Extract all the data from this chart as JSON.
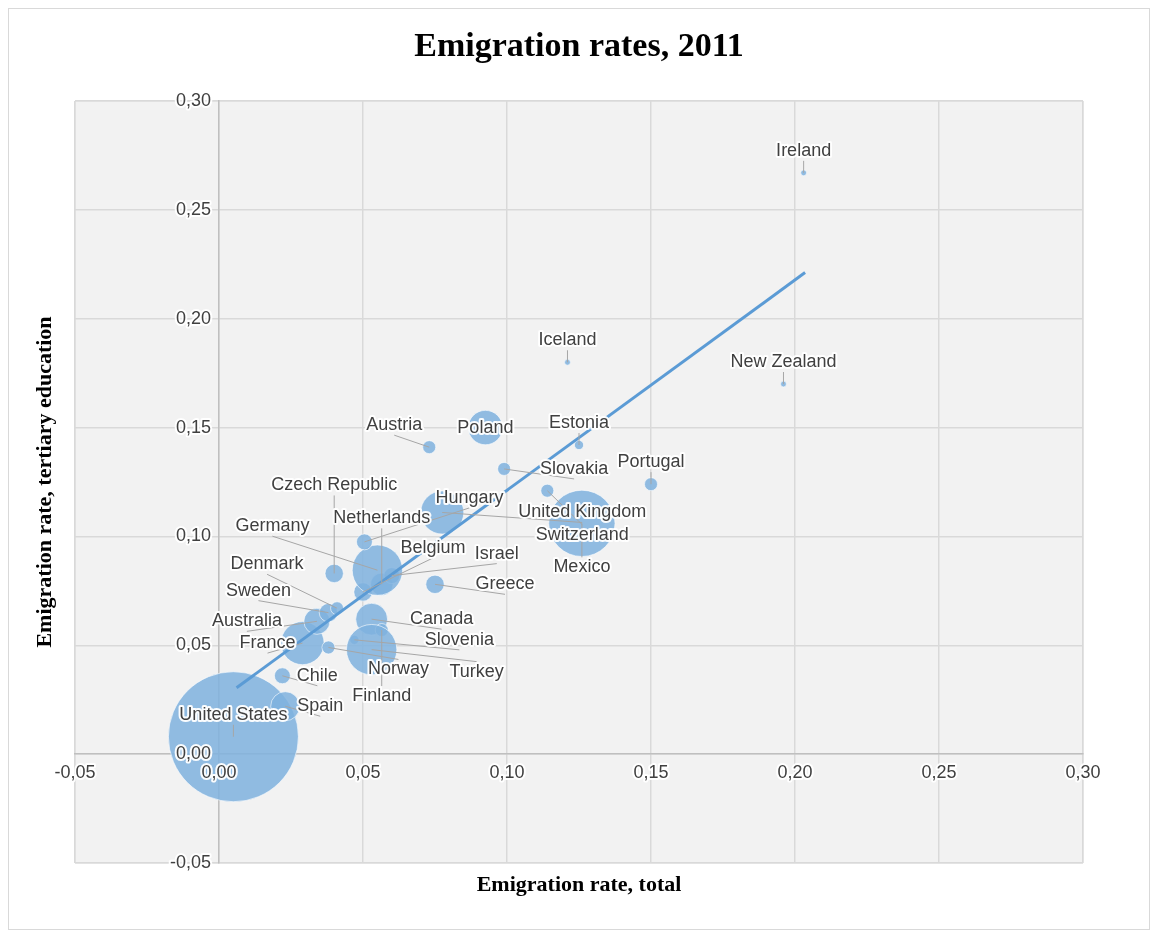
{
  "chart_data": {
    "type": "bubble",
    "title": "Emigration rates, 2011",
    "xlabel": "Emigration rate, total",
    "ylabel": "Emigration rate, tertiary education",
    "xlim": [
      -0.05,
      0.3
    ],
    "ylim": [
      -0.05,
      0.3
    ],
    "xticks": [
      {
        "value": -0.05,
        "label": "-0,05"
      },
      {
        "value": 0,
        "label": "0,00"
      },
      {
        "value": 0.05,
        "label": "0,05"
      },
      {
        "value": 0.1,
        "label": "0,10"
      },
      {
        "value": 0.15,
        "label": "0,15"
      },
      {
        "value": 0.2,
        "label": "0,20"
      },
      {
        "value": 0.25,
        "label": "0,25"
      },
      {
        "value": 0.3,
        "label": "0,30"
      }
    ],
    "yticks": [
      {
        "value": -0.05,
        "label": "-0,05"
      },
      {
        "value": 0,
        "label": "0,00"
      },
      {
        "value": 0.05,
        "label": "0,05"
      },
      {
        "value": 0.1,
        "label": "0,10"
      },
      {
        "value": 0.15,
        "label": "0,15"
      },
      {
        "value": 0.2,
        "label": "0,20"
      },
      {
        "value": 0.25,
        "label": "0,25"
      },
      {
        "value": 0.3,
        "label": "0,30"
      }
    ],
    "grid": true,
    "series": [
      {
        "color": "#7fb1de",
        "x": [
          0.005,
          0.023,
          0.022,
          0.029,
          0.038,
          0.034,
          0.038,
          0.041,
          0.053,
          0.0565,
          0.047,
          0.053,
          0.05,
          0.0565,
          0.075,
          0.06,
          0.055,
          0.04,
          0.0505,
          0.0775,
          0.0925,
          0.073,
          0.099,
          0.114,
          0.125,
          0.15,
          0.126,
          0.121,
          0.196,
          0.203
        ],
        "values": [
          0.008,
          0.022,
          0.036,
          0.051,
          0.049,
          0.061,
          0.065,
          0.067,
          0.062,
          0.057,
          0.0525,
          0.048,
          0.0745,
          0.078,
          0.078,
          0.082,
          0.0845,
          0.083,
          0.0975,
          0.111,
          0.15,
          0.141,
          0.131,
          0.121,
          0.142,
          0.124,
          0.106,
          0.18,
          0.17,
          0.267
        ],
        "sizes": [
          1,
          0.05,
          0.015,
          0.11,
          0.01,
          0.04,
          0.02,
          0.01,
          0.06,
          0.01,
          0.005,
          0.15,
          0.02,
          0.03,
          0.02,
          0.015,
          0.15,
          0.02,
          0.015,
          0.11,
          0.07,
          0.01,
          0.01,
          0.01,
          0.005,
          0.01,
          0.26,
          0.002,
          0.002,
          0.002
        ]
      },
      {
        "type": "line",
        "color": "#5b9bd5",
        "x": [
          0.0061,
          0.2035
        ],
        "values": [
          0.0305,
          0.2212
        ]
      }
    ],
    "annotations": [
      {
        "text": "United States",
        "x": 0.005,
        "y": 0.008
      },
      {
        "text": "Spain",
        "x": 0.023,
        "y": 0.022
      },
      {
        "text": "Chile",
        "x": 0.022,
        "y": 0.036
      },
      {
        "text": "France",
        "x": 0.029,
        "y": 0.051
      },
      {
        "text": "Norway",
        "x": 0.038,
        "y": 0.049
      },
      {
        "text": "Australia",
        "x": 0.034,
        "y": 0.061
      },
      {
        "text": "Sweden",
        "x": 0.038,
        "y": 0.065
      },
      {
        "text": "Denmark",
        "x": 0.041,
        "y": 0.067
      },
      {
        "text": "Canada",
        "x": 0.053,
        "y": 0.062
      },
      {
        "text": "Finland",
        "x": 0.0565,
        "y": 0.057
      },
      {
        "text": "Slovenia",
        "x": 0.047,
        "y": 0.0525
      },
      {
        "text": "Turkey",
        "x": 0.053,
        "y": 0.048
      },
      {
        "text": "Belgium",
        "x": 0.05,
        "y": 0.0745
      },
      {
        "text": "Netherlands",
        "x": 0.0565,
        "y": 0.078
      },
      {
        "text": "Greece",
        "x": 0.075,
        "y": 0.078
      },
      {
        "text": "Israel",
        "x": 0.06,
        "y": 0.082
      },
      {
        "text": "Germany",
        "x": 0.055,
        "y": 0.0845
      },
      {
        "text": "Czech Republic",
        "x": 0.04,
        "y": 0.083
      },
      {
        "text": "Hungary",
        "x": 0.0505,
        "y": 0.0975
      },
      {
        "text": "United Kingdom",
        "x": 0.0775,
        "y": 0.111
      },
      {
        "text": "Poland",
        "x": 0.0925,
        "y": 0.15
      },
      {
        "text": "Austria",
        "x": 0.073,
        "y": 0.141
      },
      {
        "text": "Slovakia",
        "x": 0.099,
        "y": 0.131
      },
      {
        "text": "Switzerland",
        "x": 0.114,
        "y": 0.121
      },
      {
        "text": "Estonia",
        "x": 0.125,
        "y": 0.142
      },
      {
        "text": "Portugal",
        "x": 0.15,
        "y": 0.124
      },
      {
        "text": "Mexico",
        "x": 0.126,
        "y": 0.106
      },
      {
        "text": "Iceland",
        "x": 0.121,
        "y": 0.18
      },
      {
        "text": "New Zealand",
        "x": 0.196,
        "y": 0.17
      },
      {
        "text": "Ireland",
        "x": 0.203,
        "y": 0.267
      }
    ]
  }
}
